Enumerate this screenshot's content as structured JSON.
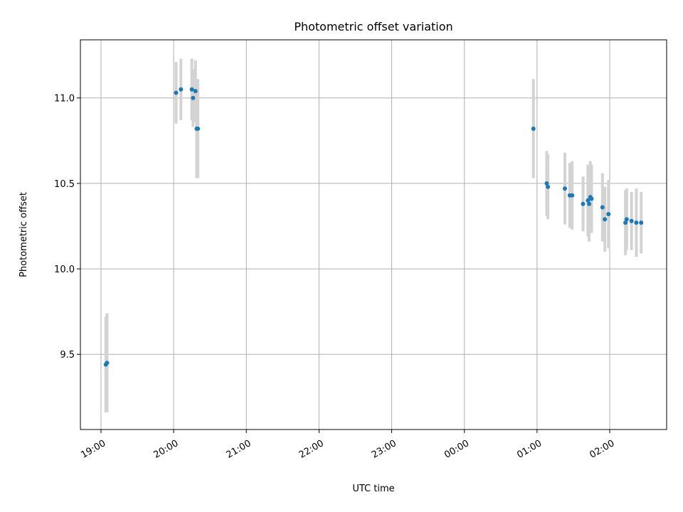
{
  "chart_data": {
    "type": "scatter",
    "title": "Photometric offset variation",
    "xlabel": "UTC time",
    "ylabel": "Photometric offset",
    "x_ticks": [
      "19:00",
      "20:00",
      "21:00",
      "22:00",
      "23:00",
      "00:00",
      "01:00",
      "02:00"
    ],
    "y_ticks": [
      "9.5",
      "10.0",
      "10.5",
      "11.0"
    ],
    "xlim_hours_utc": [
      "18:43",
      "02:47"
    ],
    "ylim": [
      9.06,
      11.34
    ],
    "grid": true,
    "colors": {
      "point": "#1f77b4",
      "errorbar": "#d3d3d3"
    },
    "points": [
      {
        "time": "19:04",
        "value": 9.44,
        "error": 0.28
      },
      {
        "time": "19:05",
        "value": 9.45,
        "error": 0.29
      },
      {
        "time": "20:02",
        "value": 11.03,
        "error": 0.18
      },
      {
        "time": "20:06",
        "value": 11.05,
        "error": 0.18
      },
      {
        "time": "20:15",
        "value": 11.05,
        "error": 0.18
      },
      {
        "time": "20:16",
        "value": 11.0,
        "error": 0.17
      },
      {
        "time": "20:18",
        "value": 11.04,
        "error": 0.18
      },
      {
        "time": "20:19",
        "value": 10.82,
        "error": 0.29
      },
      {
        "time": "20:20",
        "value": 10.82,
        "error": 0.29
      },
      {
        "time": "00:57",
        "value": 10.82,
        "error": 0.29
      },
      {
        "time": "01:08",
        "value": 10.5,
        "error": 0.19
      },
      {
        "time": "01:09",
        "value": 10.48,
        "error": 0.19
      },
      {
        "time": "01:23",
        "value": 10.47,
        "error": 0.21
      },
      {
        "time": "01:27",
        "value": 10.43,
        "error": 0.19
      },
      {
        "time": "01:29",
        "value": 10.43,
        "error": 0.2
      },
      {
        "time": "01:38",
        "value": 10.38,
        "error": 0.16
      },
      {
        "time": "01:42",
        "value": 10.4,
        "error": 0.21
      },
      {
        "time": "01:43",
        "value": 10.38,
        "error": 0.22
      },
      {
        "time": "01:44",
        "value": 10.42,
        "error": 0.21
      },
      {
        "time": "01:45",
        "value": 10.41,
        "error": 0.2
      },
      {
        "time": "01:54",
        "value": 10.36,
        "error": 0.2
      },
      {
        "time": "01:56",
        "value": 10.29,
        "error": 0.19
      },
      {
        "time": "01:59",
        "value": 10.32,
        "error": 0.2
      },
      {
        "time": "02:13",
        "value": 10.27,
        "error": 0.19
      },
      {
        "time": "02:14",
        "value": 10.29,
        "error": 0.18
      },
      {
        "time": "02:18",
        "value": 10.28,
        "error": 0.17
      },
      {
        "time": "02:22",
        "value": 10.27,
        "error": 0.2
      },
      {
        "time": "02:26",
        "value": 10.27,
        "error": 0.18
      }
    ]
  }
}
